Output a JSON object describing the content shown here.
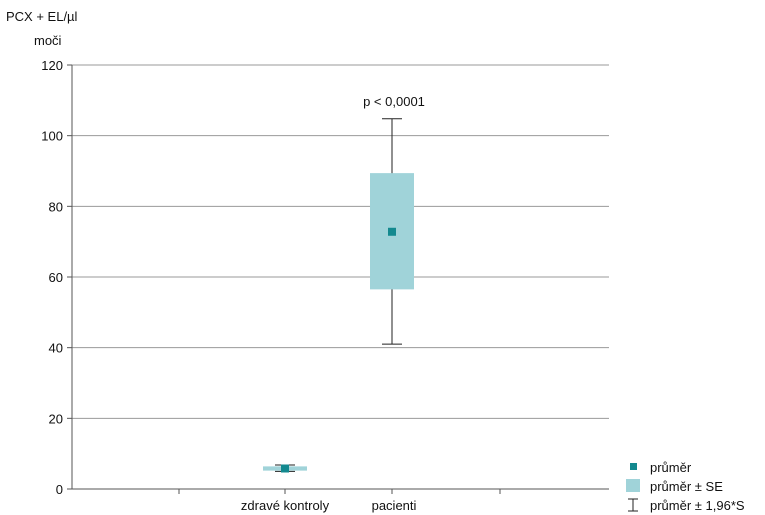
{
  "chart_data": {
    "type": "box",
    "ylabel_line1": "PCX + EL/µl",
    "ylabel_line2": "moči",
    "ylim": [
      0,
      120
    ],
    "yticks": [
      0,
      20,
      40,
      60,
      80,
      100,
      120
    ],
    "grid": true,
    "categories": [
      "zdravé kontroly",
      "pacienti"
    ],
    "groups": [
      {
        "category": "zdravé kontroly",
        "mean": 5.8,
        "se_low": 5.2,
        "se_high": 6.4,
        "whisker_low": 5.0,
        "whisker_high": 6.8
      },
      {
        "category": "pacienti",
        "mean": 72.8,
        "se_low": 56.5,
        "se_high": 89.4,
        "whisker_low": 41.0,
        "whisker_high": 104.8
      }
    ],
    "annotation": "p < 0,0001",
    "legend_position": "bottom-right",
    "legend": [
      {
        "label": "průměr",
        "symbol": "square"
      },
      {
        "label": "průměr ± SE",
        "symbol": "box"
      },
      {
        "label": "průměr ± 1,96*S",
        "symbol": "whisker"
      }
    ],
    "colors": {
      "mean": "#13898f",
      "box_fill": "#a0d3d9",
      "grid": "#9a9a9a",
      "axis": "#555555",
      "whisker": "#222222"
    }
  }
}
